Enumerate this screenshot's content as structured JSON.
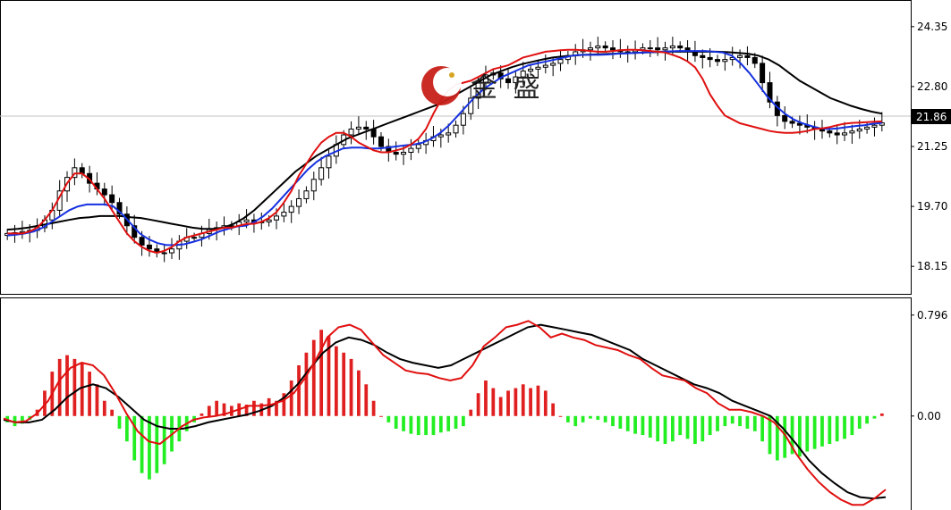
{
  "watermark": {
    "text": "金 盛"
  },
  "price_tag": {
    "value": "21.86"
  },
  "chart_data": [
    {
      "type": "candlestick",
      "title": "",
      "ylim": [
        17.6,
        24.9
      ],
      "y_ticks": [
        "24.35",
        "22.80",
        "21.25",
        "19.70",
        "18.15"
      ],
      "current_price": 21.86,
      "colors": {
        "up_body": "#ffffff",
        "down_body": "#000000",
        "wick": "#000000",
        "ma_fast": "#e01010",
        "ma_mid": "#1530e0",
        "ma_slow": "#000000"
      },
      "close": [
        19.0,
        19.02,
        19.05,
        19.08,
        19.15,
        19.35,
        19.6,
        20.1,
        20.45,
        20.7,
        20.55,
        20.3,
        20.15,
        20.0,
        19.8,
        19.5,
        19.2,
        18.9,
        18.7,
        18.6,
        18.5,
        18.5,
        18.6,
        18.8,
        18.9,
        18.9,
        19.0,
        19.1,
        19.15,
        19.2,
        19.2,
        19.3,
        19.35,
        19.3,
        19.3,
        19.35,
        19.45,
        19.55,
        19.7,
        19.9,
        20.1,
        20.4,
        20.7,
        21.0,
        21.3,
        21.55,
        21.7,
        21.75,
        21.7,
        21.5,
        21.25,
        21.1,
        21.05,
        21.1,
        21.2,
        21.3,
        21.4,
        21.5,
        21.55,
        21.6,
        21.8,
        22.1,
        22.5,
        22.9,
        23.1,
        23.15,
        23.0,
        22.9,
        23.05,
        23.2,
        23.25,
        23.3,
        23.35,
        23.4,
        23.5,
        23.6,
        23.7,
        23.75,
        23.8,
        23.85,
        23.8,
        23.75,
        23.7,
        23.7,
        23.75,
        23.8,
        23.8,
        23.75,
        23.8,
        23.85,
        23.8,
        23.7,
        23.6,
        23.55,
        23.5,
        23.45,
        23.5,
        23.55,
        23.6,
        23.55,
        23.4,
        22.9,
        22.4,
        22.05,
        21.9,
        21.85,
        21.8,
        21.75,
        21.7,
        21.65,
        21.6,
        21.55,
        21.6,
        21.65,
        21.7,
        21.75,
        21.8,
        21.86
      ],
      "ma_fast": [
        19.0,
        19.0,
        19.0,
        19.05,
        19.15,
        19.35,
        19.6,
        19.95,
        20.3,
        20.55,
        20.55,
        20.4,
        20.15,
        19.9,
        19.6,
        19.3,
        19.0,
        18.8,
        18.65,
        18.55,
        18.5,
        18.55,
        18.65,
        18.8,
        18.9,
        18.95,
        19.0,
        19.05,
        19.1,
        19.15,
        19.15,
        19.2,
        19.25,
        19.25,
        19.3,
        19.4,
        19.55,
        19.8,
        20.1,
        20.5,
        20.8,
        21.1,
        21.35,
        21.5,
        21.6,
        21.6,
        21.5,
        21.35,
        21.25,
        21.15,
        21.1,
        21.1,
        21.15,
        21.2,
        21.3,
        21.45,
        21.7,
        22.1,
        22.45,
        22.7,
        22.85,
        22.9,
        22.95,
        23.05,
        23.15,
        23.25,
        23.3,
        23.35,
        23.45,
        23.55,
        23.6,
        23.65,
        23.7,
        23.72,
        23.74,
        23.75,
        23.75,
        23.74,
        23.72,
        23.7,
        23.7,
        23.72,
        23.74,
        23.75,
        23.75,
        23.74,
        23.72,
        23.7,
        23.68,
        23.62,
        23.55,
        23.45,
        23.3,
        23.0,
        22.6,
        22.3,
        22.05,
        21.95,
        21.85,
        21.8,
        21.75,
        21.7,
        21.65,
        21.62,
        21.6,
        21.6,
        21.62,
        21.65,
        21.7,
        21.72,
        21.75,
        21.8,
        21.84,
        21.86,
        21.87,
        21.88,
        21.89,
        21.9
      ],
      "ma_mid": [
        18.95,
        18.97,
        19.0,
        19.05,
        19.15,
        19.3,
        19.45,
        19.6,
        19.7,
        19.75,
        19.75,
        19.75,
        19.7,
        19.5,
        19.25,
        19.0,
        18.85,
        18.75,
        18.7,
        18.7,
        18.72,
        18.78,
        18.85,
        18.95,
        19.05,
        19.12,
        19.18,
        19.2,
        19.3,
        19.45,
        19.65,
        19.9,
        20.15,
        20.4,
        20.65,
        20.85,
        21.0,
        21.1,
        21.2,
        21.22,
        21.22,
        21.2,
        21.2,
        21.22,
        21.25,
        21.28,
        21.3,
        21.35,
        21.45,
        21.6,
        21.8,
        22.05,
        22.3,
        22.55,
        22.75,
        22.9,
        23.05,
        23.15,
        23.25,
        23.35,
        23.4,
        23.45,
        23.5,
        23.55,
        23.6,
        23.62,
        23.62,
        23.62,
        23.63,
        23.65,
        23.66,
        23.67,
        23.68,
        23.69,
        23.7,
        23.71,
        23.72,
        23.72,
        23.72,
        23.72,
        23.7,
        23.68,
        23.6,
        23.4,
        23.15,
        22.85,
        22.55,
        22.3,
        22.1,
        21.95,
        21.85,
        21.78,
        21.72,
        21.7,
        21.72,
        21.75,
        21.78,
        21.8,
        21.84,
        21.86
      ],
      "ma_slow": [
        19.1,
        19.12,
        19.15,
        19.2,
        19.25,
        19.3,
        19.35,
        19.4,
        19.42,
        19.45,
        19.45,
        19.45,
        19.42,
        19.4,
        19.35,
        19.3,
        19.25,
        19.2,
        19.15,
        19.12,
        19.12,
        19.15,
        19.25,
        19.4,
        19.6,
        19.85,
        20.1,
        20.35,
        20.6,
        20.8,
        21.0,
        21.15,
        21.3,
        21.45,
        21.55,
        21.65,
        21.75,
        21.85,
        21.95,
        22.05,
        22.15,
        22.25,
        22.35,
        22.5,
        22.65,
        22.8,
        22.95,
        23.1,
        23.2,
        23.3,
        23.38,
        23.44,
        23.5,
        23.55,
        23.58,
        23.6,
        23.62,
        23.63,
        23.64,
        23.65,
        23.66,
        23.67,
        23.68,
        23.69,
        23.7,
        23.7,
        23.7,
        23.7,
        23.7,
        23.7,
        23.69,
        23.67,
        23.65,
        23.6,
        23.5,
        23.35,
        23.15,
        22.95,
        22.8,
        22.65,
        22.5,
        22.4,
        22.3,
        22.22,
        22.15,
        22.1
      ]
    },
    {
      "type": "histogram+lines",
      "title": "",
      "ylim": [
        -0.72,
        0.9
      ],
      "y_ticks": [
        "0.796",
        "0.00"
      ],
      "histogram": [
        -0.05,
        -0.08,
        -0.06,
        -0.03,
        0.05,
        0.2,
        0.35,
        0.45,
        0.48,
        0.45,
        0.42,
        0.35,
        0.25,
        0.12,
        0.05,
        -0.1,
        -0.2,
        -0.35,
        -0.45,
        -0.5,
        -0.45,
        -0.38,
        -0.28,
        -0.2,
        -0.12,
        -0.05,
        0.02,
        0.08,
        0.12,
        0.1,
        0.08,
        0.1,
        0.09,
        0.12,
        0.1,
        0.14,
        0.12,
        0.18,
        0.28,
        0.4,
        0.5,
        0.6,
        0.68,
        0.63,
        0.55,
        0.5,
        0.45,
        0.36,
        0.25,
        0.12,
        0.0,
        -0.05,
        -0.1,
        -0.12,
        -0.14,
        -0.15,
        -0.15,
        -0.15,
        -0.13,
        -0.12,
        -0.1,
        -0.08,
        0.05,
        0.18,
        0.28,
        0.22,
        0.15,
        0.2,
        0.22,
        0.25,
        0.22,
        0.24,
        0.2,
        0.1,
        0.0,
        -0.05,
        -0.08,
        -0.05,
        -0.02,
        -0.03,
        -0.05,
        -0.08,
        -0.1,
        -0.12,
        -0.14,
        -0.15,
        -0.17,
        -0.2,
        -0.22,
        -0.2,
        -0.15,
        -0.18,
        -0.22,
        -0.2,
        -0.15,
        -0.12,
        -0.08,
        -0.06,
        -0.08,
        -0.1,
        -0.12,
        -0.2,
        -0.3,
        -0.35,
        -0.33,
        -0.3,
        -0.32,
        -0.28,
        -0.26,
        -0.24,
        -0.22,
        -0.2,
        -0.18,
        -0.15,
        -0.1,
        -0.06,
        -0.02,
        0.02
      ],
      "line_red": [
        -0.02,
        -0.05,
        -0.04,
        0.02,
        0.12,
        0.28,
        0.38,
        0.42,
        0.4,
        0.32,
        0.18,
        0.02,
        -0.12,
        -0.2,
        -0.22,
        -0.15,
        -0.08,
        -0.03,
        -0.01,
        0.0,
        0.02,
        0.05,
        0.08,
        0.08,
        0.09,
        0.12,
        0.18,
        0.3,
        0.45,
        0.62,
        0.7,
        0.72,
        0.68,
        0.58,
        0.48,
        0.42,
        0.36,
        0.34,
        0.33,
        0.3,
        0.28,
        0.3,
        0.4,
        0.55,
        0.62,
        0.7,
        0.72,
        0.75,
        0.7,
        0.62,
        0.65,
        0.62,
        0.6,
        0.56,
        0.54,
        0.52,
        0.48,
        0.45,
        0.38,
        0.32,
        0.3,
        0.28,
        0.22,
        0.18,
        0.1,
        0.05,
        0.05,
        0.03,
        0.0,
        -0.05,
        -0.15,
        -0.3,
        -0.42,
        -0.52,
        -0.6,
        -0.66,
        -0.7,
        -0.7,
        -0.65,
        -0.58
      ],
      "line_black": [
        -0.03,
        -0.05,
        -0.05,
        -0.03,
        0.05,
        0.15,
        0.22,
        0.25,
        0.22,
        0.15,
        0.06,
        -0.03,
        -0.08,
        -0.1,
        -0.1,
        -0.08,
        -0.05,
        -0.03,
        -0.01,
        0.01,
        0.04,
        0.08,
        0.15,
        0.25,
        0.38,
        0.5,
        0.58,
        0.62,
        0.6,
        0.56,
        0.5,
        0.45,
        0.42,
        0.4,
        0.38,
        0.4,
        0.45,
        0.5,
        0.55,
        0.6,
        0.65,
        0.7,
        0.72,
        0.7,
        0.68,
        0.66,
        0.64,
        0.6,
        0.56,
        0.52,
        0.45,
        0.4,
        0.35,
        0.3,
        0.25,
        0.22,
        0.18,
        0.12,
        0.08,
        0.04,
        0.0,
        -0.1,
        -0.22,
        -0.35,
        -0.45,
        -0.53,
        -0.6,
        -0.64,
        -0.65,
        -0.64
      ]
    }
  ]
}
